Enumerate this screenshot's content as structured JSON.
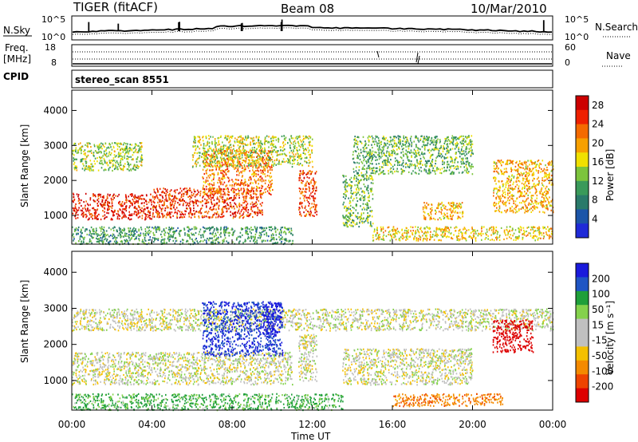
{
  "header": {
    "radar": "TIGER (fitACF)",
    "beam": "Beam 08",
    "date": "10/Mar/2010"
  },
  "colors": {
    "power": [
      "#1f2ad8",
      "#1c55a8",
      "#2a7a6a",
      "#3a9a5a",
      "#7cc43c",
      "#f0e000",
      "#f7a000",
      "#f46a00",
      "#ee2000",
      "#cc0000"
    ],
    "velocity": [
      "#1a1adc",
      "#1f55c4",
      "#1f9f3a",
      "#84d24c",
      "#c0c0c0",
      "#c0c0c0",
      "#f4c000",
      "#f48a00",
      "#ee4400",
      "#dd0000"
    ]
  },
  "nsky_panel": {
    "left_label": "N.Sky",
    "right_label": "N.Search",
    "y_ticks_left": [
      "10^5",
      "10^0"
    ],
    "y_ticks_right": [
      "10^5",
      "10^0"
    ]
  },
  "freq_panel": {
    "left_label_1": "Freq.",
    "left_label_2": "[MHz]",
    "right_label": "Nave",
    "y_ticks_left": [
      "18",
      "8"
    ],
    "y_ticks_right": [
      "60",
      "0"
    ]
  },
  "cpid_panel": {
    "label": "CPID",
    "program": "stereo_scan 8551"
  },
  "chart_data": [
    {
      "type": "heatmap",
      "name": "power",
      "xlabel": "",
      "ylabel": "Slant Range [km]",
      "x_ticks": [
        "00:00",
        "04:00",
        "08:00",
        "12:00",
        "16:00",
        "20:00",
        "00:00"
      ],
      "xlim_hours": [
        0,
        24
      ],
      "ylim_km": [
        180,
        4580
      ],
      "y_ticks": [
        1000,
        2000,
        3000,
        4000
      ],
      "colorbar": {
        "label": "Power [dB]",
        "ticks": [
          4,
          8,
          12,
          16,
          20,
          24,
          28
        ],
        "range": [
          0,
          30
        ]
      },
      "scatter_regions": [
        {
          "t0": 0.0,
          "t1": 4.0,
          "r0": 900,
          "r1": 1650,
          "value_dB": 27
        },
        {
          "t0": 4.0,
          "t1": 9.5,
          "r0": 950,
          "r1": 1800,
          "value_dB": 25
        },
        {
          "t0": 6.5,
          "t1": 10.0,
          "r0": 1600,
          "r1": 2900,
          "value_dB": 22
        },
        {
          "t0": 0.0,
          "t1": 3.5,
          "r0": 2300,
          "r1": 3100,
          "value_dB": 14
        },
        {
          "t0": 6.0,
          "t1": 12.0,
          "r0": 2400,
          "r1": 3300,
          "value_dB": 15
        },
        {
          "t0": 11.3,
          "t1": 12.2,
          "r0": 1000,
          "r1": 2300,
          "value_dB": 24
        },
        {
          "t0": 13.5,
          "t1": 15.0,
          "r0": 700,
          "r1": 2200,
          "value_dB": 12
        },
        {
          "t0": 14.0,
          "t1": 20.0,
          "r0": 2200,
          "r1": 3300,
          "value_dB": 12
        },
        {
          "t0": 17.5,
          "t1": 19.5,
          "r0": 900,
          "r1": 1400,
          "value_dB": 19
        },
        {
          "t0": 15.0,
          "t1": 24.0,
          "r0": 300,
          "r1": 700,
          "value_dB": 17
        },
        {
          "t0": 21.0,
          "t1": 24.0,
          "r0": 1100,
          "r1": 2600,
          "value_dB": 19
        },
        {
          "t0": 0.0,
          "t1": 11.0,
          "r0": 200,
          "r1": 700,
          "value_dB": 10
        }
      ]
    },
    {
      "type": "heatmap",
      "name": "velocity",
      "xlabel": "Time UT",
      "ylabel": "Slant Range [km]",
      "x_ticks": [
        "00:00",
        "04:00",
        "08:00",
        "12:00",
        "16:00",
        "20:00",
        "00:00"
      ],
      "xlim_hours": [
        0,
        24
      ],
      "ylim_km": [
        180,
        4580
      ],
      "y_ticks": [
        1000,
        2000,
        3000,
        4000
      ],
      "colorbar": {
        "label": "Velocity [m s⁻¹]",
        "ticks": [
          "200",
          "100",
          "50",
          "15",
          "-15",
          "-50",
          "-100",
          "-200"
        ]
      },
      "scatter_regions": [
        {
          "t0": 0.0,
          "t1": 11.0,
          "r0": 900,
          "r1": 1800,
          "value_ms": 0
        },
        {
          "t0": 0.0,
          "t1": 24.0,
          "r0": 2400,
          "r1": 3000,
          "value_ms": 0
        },
        {
          "t0": 6.5,
          "t1": 10.5,
          "r0": 1700,
          "r1": 3200,
          "value_ms": 150
        },
        {
          "t0": 9.5,
          "t1": 10.5,
          "r0": 2300,
          "r1": 3200,
          "value_ms": 200
        },
        {
          "t0": 11.3,
          "t1": 12.2,
          "r0": 1000,
          "r1": 2300,
          "value_ms": 0
        },
        {
          "t0": 13.5,
          "t1": 20.0,
          "r0": 900,
          "r1": 1900,
          "value_ms": 0
        },
        {
          "t0": 16.0,
          "t1": 21.5,
          "r0": 300,
          "r1": 650,
          "value_ms": -60
        },
        {
          "t0": 21.0,
          "t1": 23.0,
          "r0": 1800,
          "r1": 2700,
          "value_ms": -200
        },
        {
          "t0": 0.0,
          "t1": 13.5,
          "r0": 200,
          "r1": 650,
          "value_ms": 40
        }
      ]
    }
  ]
}
